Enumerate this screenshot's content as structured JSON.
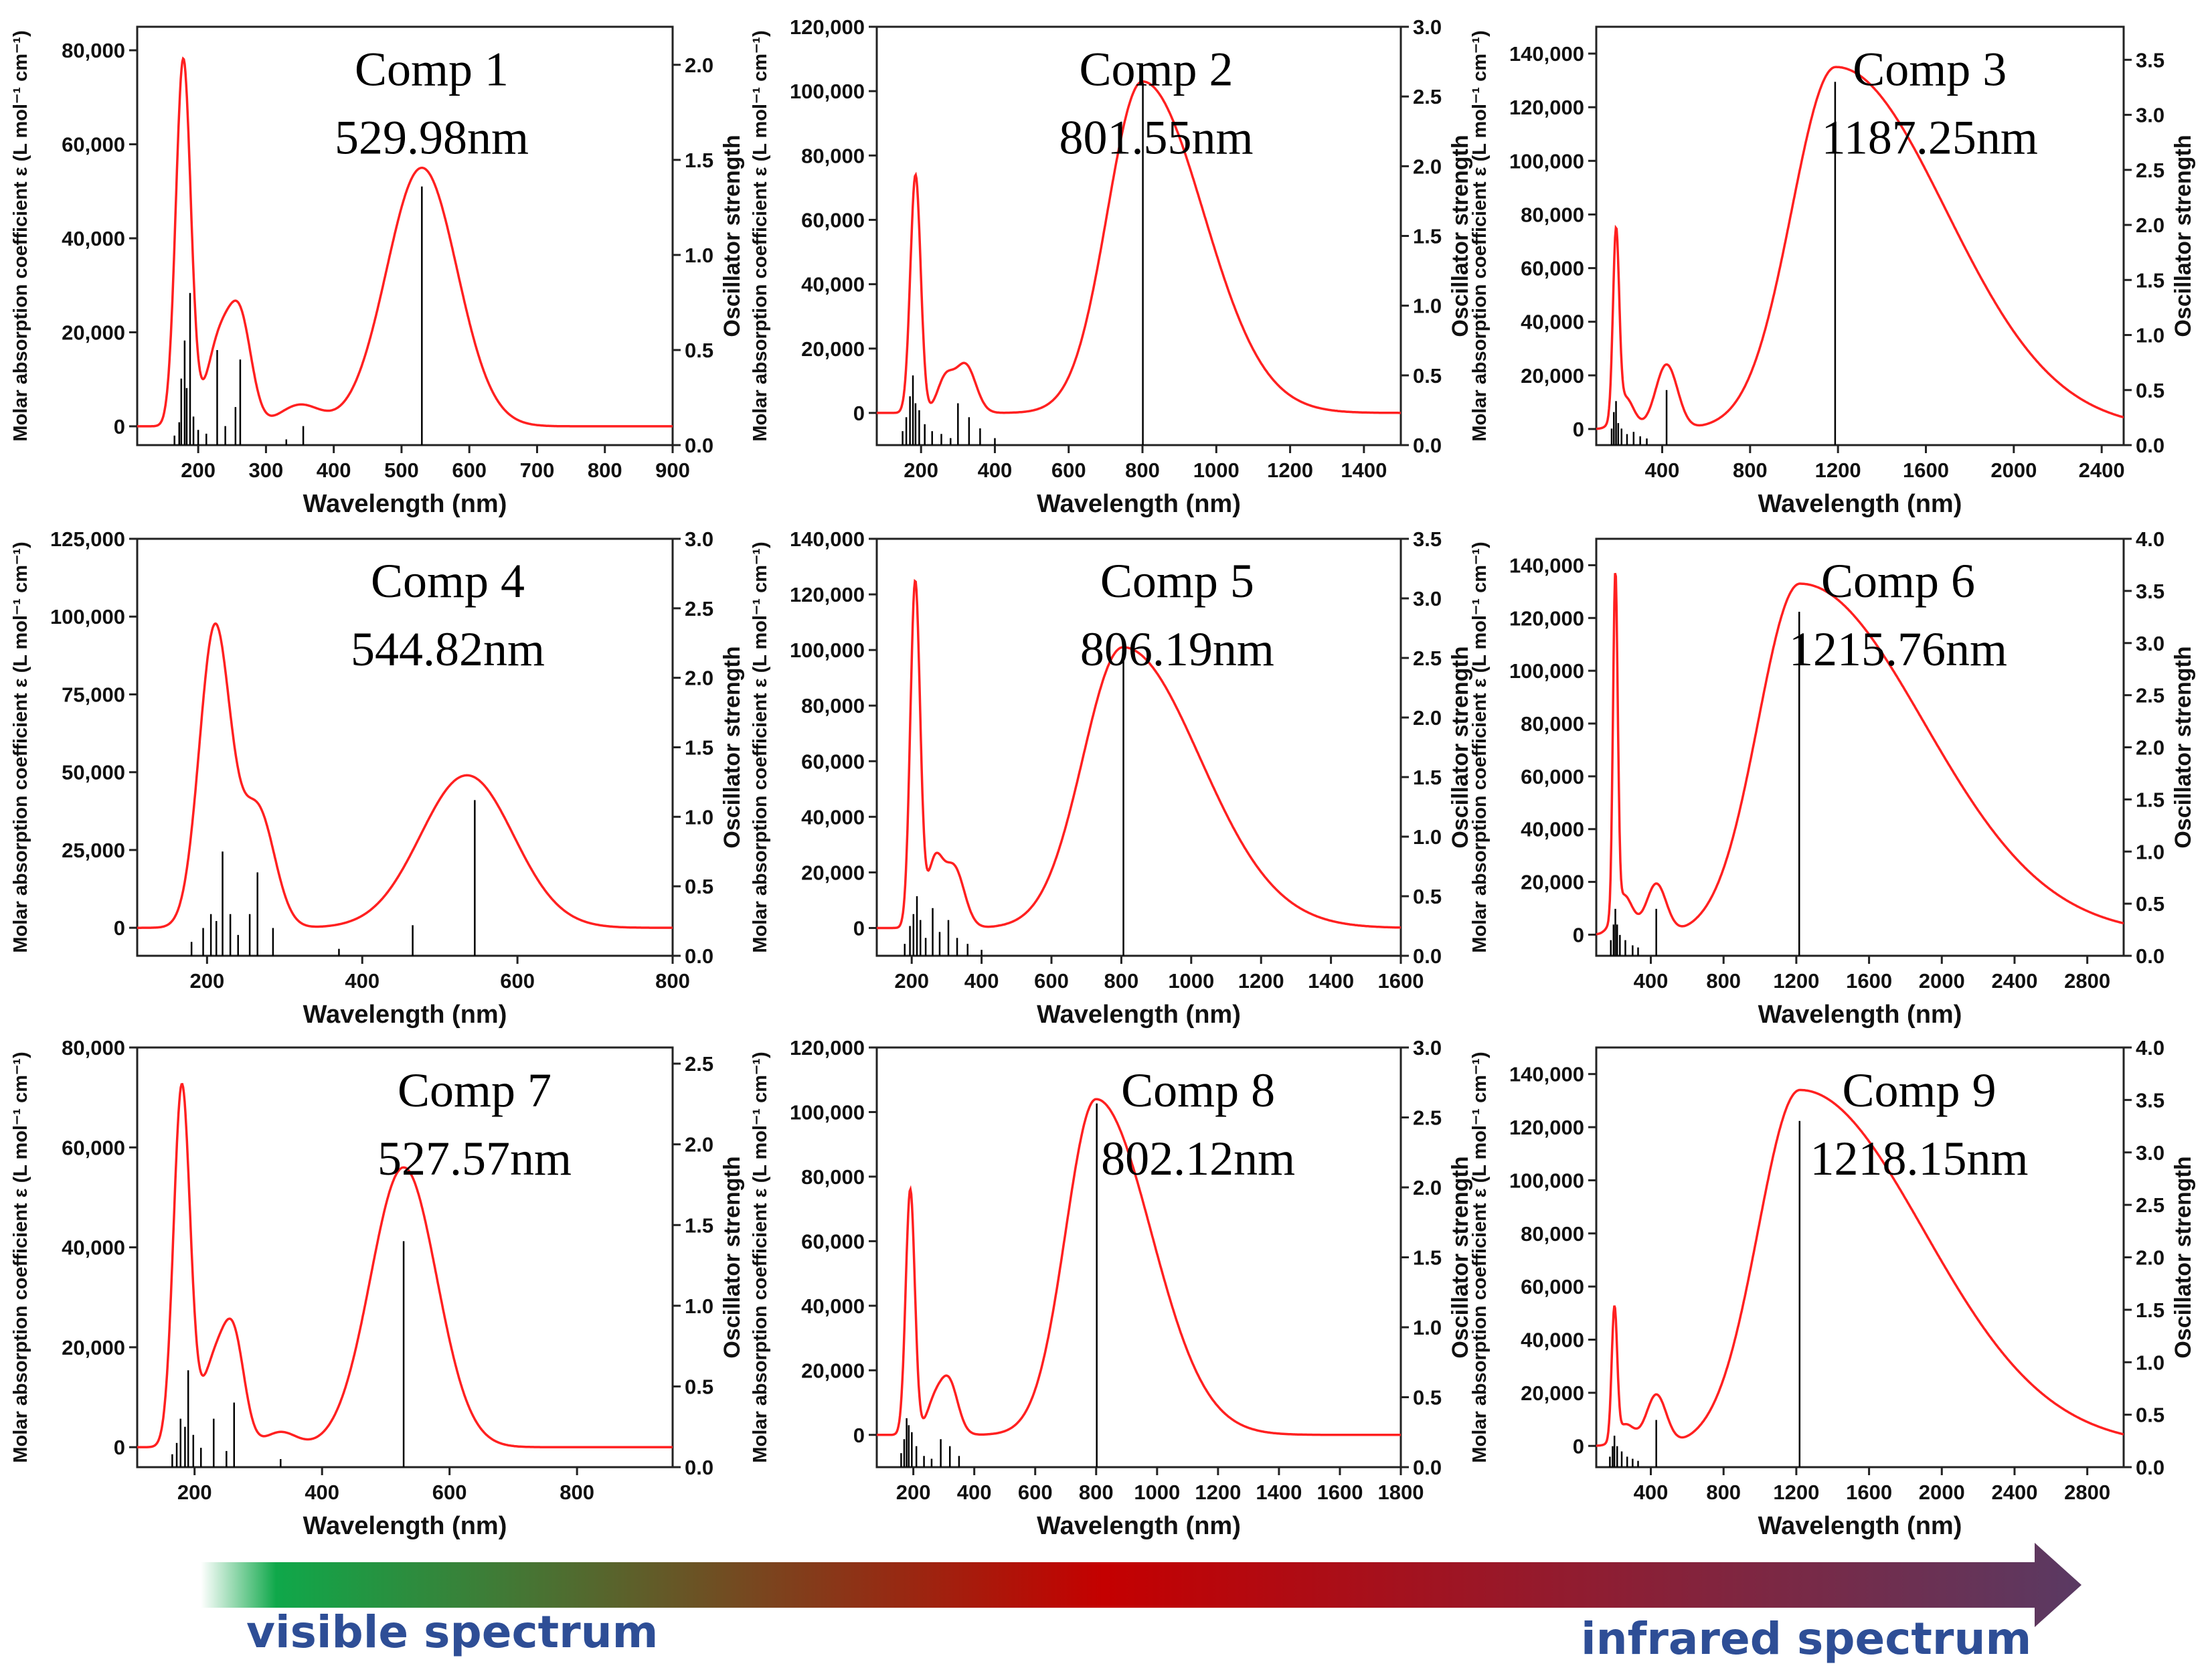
{
  "figure": {
    "xlabel": "Wavelength (nm)",
    "ylabel": "Molar absorption coefficient ε (L mol⁻¹ cm⁻¹)",
    "y2label": "Oscillator strength",
    "curve_color": "#ff2020",
    "stick_color": "#000000"
  },
  "banner": {
    "left_label": "visible spectrum",
    "right_label": "infrared spectrum",
    "gradient_colors": [
      "#ffffff",
      "#0fa84a",
      "#c40000",
      "#5a3a63"
    ]
  },
  "chart_data": [
    {
      "type": "line",
      "title": "Comp 1",
      "peak_label": "529.98nm",
      "xlim": [
        110,
        900
      ],
      "xticks": [
        200,
        300,
        400,
        500,
        600,
        700,
        800,
        900
      ],
      "ylim": [
        -4000,
        85000
      ],
      "yticks": [
        0,
        20000,
        40000,
        60000,
        80000
      ],
      "ytick_labels": [
        "0",
        "20,000",
        "40,000",
        "60,000",
        "80,000"
      ],
      "y2lim": [
        0.0,
        2.2
      ],
      "y2ticks": [
        0.0,
        0.5,
        1.0,
        1.5,
        2.0
      ],
      "y2tick_labels": [
        "0.0",
        "0.5",
        "1.0",
        "1.5",
        "2.0"
      ],
      "bands": [
        [
          178,
          78000,
          11
        ],
        [
          230,
          17000,
          18
        ],
        [
          262,
          22000,
          17
        ],
        [
          350,
          4500,
          30
        ],
        [
          530,
          55000,
          52
        ]
      ],
      "sticks": [
        [
          165,
          0.05
        ],
        [
          172,
          0.12
        ],
        [
          175,
          0.35
        ],
        [
          180,
          0.55
        ],
        [
          183,
          0.3
        ],
        [
          188,
          0.8
        ],
        [
          193,
          0.15
        ],
        [
          200,
          0.08
        ],
        [
          212,
          0.06
        ],
        [
          228,
          0.5
        ],
        [
          240,
          0.1
        ],
        [
          255,
          0.2
        ],
        [
          262,
          0.45
        ],
        [
          330,
          0.03
        ],
        [
          355,
          0.1
        ],
        [
          530,
          1.36
        ]
      ]
    },
    {
      "type": "line",
      "title": "Comp 2",
      "peak_label": "801.55nm",
      "xlim": [
        80,
        1500
      ],
      "xticks": [
        200,
        400,
        600,
        800,
        1000,
        1200,
        1400
      ],
      "ylim": [
        -10000,
        120000
      ],
      "yticks": [
        0,
        20000,
        40000,
        60000,
        80000,
        100000,
        120000
      ],
      "ytick_labels": [
        "0",
        "20,000",
        "40,000",
        "60,000",
        "80,000",
        "100,000",
        "120,000"
      ],
      "y2lim": [
        0.0,
        3.0
      ],
      "y2ticks": [
        0.0,
        0.5,
        1.0,
        1.5,
        2.0,
        2.5,
        3.0
      ],
      "y2tick_labels": [
        "0.0",
        "0.5",
        "1.0",
        "1.5",
        "2.0",
        "2.5",
        "3.0"
      ],
      "bands": [
        [
          185,
          74000,
          14
        ],
        [
          265,
          10000,
          22
        ],
        [
          320,
          15000,
          28
        ],
        [
          800,
          103000,
          [
            95,
            165
          ]
        ]
      ],
      "sticks": [
        [
          150,
          0.1
        ],
        [
          160,
          0.2
        ],
        [
          170,
          0.35
        ],
        [
          178,
          0.5
        ],
        [
          185,
          0.3
        ],
        [
          195,
          0.25
        ],
        [
          210,
          0.15
        ],
        [
          230,
          0.1
        ],
        [
          255,
          0.08
        ],
        [
          280,
          0.05
        ],
        [
          300,
          0.3
        ],
        [
          330,
          0.2
        ],
        [
          360,
          0.12
        ],
        [
          400,
          0.05
        ],
        [
          801,
          2.6
        ]
      ]
    },
    {
      "type": "line",
      "title": "Comp 3",
      "peak_label": "1187.25nm",
      "xlim": [
        100,
        2500
      ],
      "xticks": [
        400,
        800,
        1200,
        1600,
        2000,
        2400
      ],
      "ylim": [
        -6000,
        150000
      ],
      "yticks": [
        0,
        20000,
        40000,
        60000,
        80000,
        100000,
        120000,
        140000
      ],
      "ytick_labels": [
        "0",
        "20,000",
        "40,000",
        "60,000",
        "80,000",
        "100,000",
        "120,000",
        "140,000"
      ],
      "y2lim": [
        0.0,
        3.8
      ],
      "y2ticks": [
        0.0,
        0.5,
        1.0,
        1.5,
        2.0,
        2.5,
        3.0,
        3.5
      ],
      "y2tick_labels": [
        "0.0",
        "0.5",
        "1.0",
        "1.5",
        "2.0",
        "2.5",
        "3.0",
        "3.5"
      ],
      "bands": [
        [
          190,
          68000,
          14
        ],
        [
          230,
          12000,
          40
        ],
        [
          420,
          24000,
          50
        ],
        [
          1190,
          135000,
          [
            200,
            500
          ]
        ]
      ],
      "sticks": [
        [
          170,
          0.15
        ],
        [
          180,
          0.3
        ],
        [
          190,
          0.4
        ],
        [
          200,
          0.2
        ],
        [
          215,
          0.15
        ],
        [
          240,
          0.1
        ],
        [
          270,
          0.12
        ],
        [
          300,
          0.08
        ],
        [
          330,
          0.06
        ],
        [
          420,
          0.5
        ],
        [
          1187,
          3.3
        ]
      ]
    },
    {
      "type": "line",
      "title": "Comp 4",
      "peak_label": "544.82nm",
      "xlim": [
        110,
        800
      ],
      "xticks": [
        200,
        400,
        600,
        800
      ],
      "ylim": [
        -9000,
        125000
      ],
      "yticks": [
        0,
        25000,
        50000,
        75000,
        100000,
        125000
      ],
      "ytick_labels": [
        "0",
        "25,000",
        "50,000",
        "75,000",
        "100,000",
        "125,000"
      ],
      "y2lim": [
        0.0,
        3.0
      ],
      "y2ticks": [
        0.0,
        0.5,
        1.0,
        1.5,
        2.0,
        2.5,
        3.0
      ],
      "y2tick_labels": [
        "0.0",
        "0.5",
        "1.0",
        "1.5",
        "2.0",
        "2.5",
        "3.0"
      ],
      "bands": [
        [
          210,
          96000,
          20
        ],
        [
          265,
          38000,
          22
        ],
        [
          535,
          49000,
          60
        ]
      ],
      "sticks": [
        [
          180,
          0.1
        ],
        [
          195,
          0.2
        ],
        [
          205,
          0.3
        ],
        [
          212,
          0.25
        ],
        [
          220,
          0.75
        ],
        [
          230,
          0.3
        ],
        [
          240,
          0.15
        ],
        [
          255,
          0.3
        ],
        [
          265,
          0.6
        ],
        [
          285,
          0.2
        ],
        [
          370,
          0.05
        ],
        [
          465,
          0.22
        ],
        [
          545,
          1.12
        ]
      ]
    },
    {
      "type": "line",
      "title": "Comp 5",
      "peak_label": "806.19nm",
      "xlim": [
        100,
        1600
      ],
      "xticks": [
        200,
        400,
        600,
        800,
        1000,
        1200,
        1400,
        1600
      ],
      "ylim": [
        -10000,
        140000
      ],
      "yticks": [
        0,
        20000,
        40000,
        60000,
        80000,
        100000,
        120000,
        140000
      ],
      "ytick_labels": [
        "0",
        "20,000",
        "40,000",
        "60,000",
        "80,000",
        "100,000",
        "120,000",
        "140,000"
      ],
      "y2lim": [
        0.0,
        3.5
      ],
      "y2ticks": [
        0.0,
        0.5,
        1.0,
        1.5,
        2.0,
        2.5,
        3.0,
        3.5
      ],
      "y2tick_labels": [
        "0.0",
        "0.5",
        "1.0",
        "1.5",
        "2.0",
        "2.5",
        "3.0",
        "3.5"
      ],
      "bands": [
        [
          210,
          124000,
          14
        ],
        [
          265,
          22000,
          22
        ],
        [
          320,
          22000,
          30
        ],
        [
          805,
          101000,
          [
            115,
            220
          ]
        ]
      ],
      "sticks": [
        [
          180,
          0.1
        ],
        [
          195,
          0.25
        ],
        [
          205,
          0.35
        ],
        [
          215,
          0.5
        ],
        [
          225,
          0.3
        ],
        [
          240,
          0.15
        ],
        [
          260,
          0.4
        ],
        [
          280,
          0.2
        ],
        [
          305,
          0.3
        ],
        [
          330,
          0.15
        ],
        [
          360,
          0.1
        ],
        [
          400,
          0.05
        ],
        [
          806,
          2.5
        ]
      ]
    },
    {
      "type": "line",
      "title": "Comp 6",
      "peak_label": "1215.76nm",
      "xlim": [
        100,
        3000
      ],
      "xticks": [
        400,
        800,
        1200,
        1600,
        2000,
        2400,
        2800
      ],
      "ylim": [
        -8000,
        150000
      ],
      "yticks": [
        0,
        20000,
        40000,
        60000,
        80000,
        100000,
        120000,
        140000
      ],
      "ytick_labels": [
        "0",
        "20,000",
        "40,000",
        "60,000",
        "80,000",
        "100,000",
        "120,000",
        "140,000"
      ],
      "y2lim": [
        0.0,
        4.0
      ],
      "y2ticks": [
        0.0,
        0.5,
        1.0,
        1.5,
        2.0,
        2.5,
        3.0,
        3.5,
        4.0
      ],
      "y2tick_labels": [
        "0.0",
        "0.5",
        "1.0",
        "1.5",
        "2.0",
        "2.5",
        "3.0",
        "3.5",
        "4.0"
      ],
      "bands": [
        [
          205,
          128000,
          13
        ],
        [
          250,
          15000,
          50
        ],
        [
          430,
          19000,
          55
        ],
        [
          1220,
          133000,
          [
            230,
            680
          ]
        ]
      ],
      "sticks": [
        [
          180,
          0.15
        ],
        [
          195,
          0.3
        ],
        [
          205,
          0.45
        ],
        [
          215,
          0.3
        ],
        [
          230,
          0.2
        ],
        [
          260,
          0.15
        ],
        [
          300,
          0.1
        ],
        [
          330,
          0.08
        ],
        [
          430,
          0.45
        ],
        [
          1216,
          3.3
        ]
      ]
    },
    {
      "type": "line",
      "title": "Comp 7",
      "peak_label": "527.57nm",
      "xlim": [
        110,
        950
      ],
      "xticks": [
        200,
        400,
        600,
        800
      ],
      "ylim": [
        -4000,
        80000
      ],
      "yticks": [
        0,
        20000,
        40000,
        60000,
        80000
      ],
      "ytick_labels": [
        "0",
        "20,000",
        "40,000",
        "60,000",
        "80,000"
      ],
      "y2lim": [
        0.0,
        2.6
      ],
      "y2ticks": [
        0.0,
        0.5,
        1.0,
        1.5,
        2.0,
        2.5
      ],
      "y2tick_labels": [
        "0.0",
        "0.5",
        "1.0",
        "1.5",
        "2.0",
        "2.5"
      ],
      "bands": [
        [
          180,
          72000,
          13
        ],
        [
          230,
          16000,
          20
        ],
        [
          262,
          20000,
          17
        ],
        [
          335,
          3000,
          25
        ],
        [
          528,
          56000,
          52
        ]
      ],
      "sticks": [
        [
          165,
          0.08
        ],
        [
          172,
          0.15
        ],
        [
          178,
          0.3
        ],
        [
          185,
          0.25
        ],
        [
          190,
          0.6
        ],
        [
          198,
          0.2
        ],
        [
          210,
          0.12
        ],
        [
          230,
          0.3
        ],
        [
          250,
          0.1
        ],
        [
          262,
          0.4
        ],
        [
          335,
          0.05
        ],
        [
          528,
          1.4
        ]
      ]
    },
    {
      "type": "line",
      "title": "Comp 8",
      "peak_label": "802.12nm",
      "xlim": [
        80,
        1800
      ],
      "xticks": [
        200,
        400,
        600,
        800,
        1000,
        1200,
        1400,
        1600,
        1800
      ],
      "ylim": [
        -10000,
        120000
      ],
      "yticks": [
        0,
        20000,
        40000,
        60000,
        80000,
        100000,
        120000
      ],
      "ytick_labels": [
        "0",
        "20,000",
        "40,000",
        "60,000",
        "80,000",
        "100,000",
        "120,000"
      ],
      "y2lim": [
        0.0,
        3.0
      ],
      "y2ticks": [
        0.0,
        0.5,
        1.0,
        1.5,
        2.0,
        2.5,
        3.0
      ],
      "y2tick_labels": [
        "0.0",
        "0.5",
        "1.0",
        "1.5",
        "2.0",
        "2.5",
        "3.0"
      ],
      "bands": [
        [
          190,
          76000,
          15
        ],
        [
          265,
          8000,
          25
        ],
        [
          315,
          17000,
          30
        ],
        [
          800,
          104000,
          [
            100,
            180
          ]
        ]
      ],
      "sticks": [
        [
          160,
          0.1
        ],
        [
          170,
          0.2
        ],
        [
          178,
          0.35
        ],
        [
          185,
          0.3
        ],
        [
          195,
          0.25
        ],
        [
          210,
          0.15
        ],
        [
          235,
          0.08
        ],
        [
          260,
          0.06
        ],
        [
          290,
          0.2
        ],
        [
          320,
          0.15
        ],
        [
          350,
          0.08
        ],
        [
          802,
          2.6
        ]
      ]
    },
    {
      "type": "line",
      "title": "Comp 9",
      "peak_label": "1218.15nm",
      "xlim": [
        100,
        3000
      ],
      "xticks": [
        400,
        800,
        1200,
        1600,
        2000,
        2400,
        2800
      ],
      "ylim": [
        -8000,
        150000
      ],
      "yticks": [
        0,
        20000,
        40000,
        60000,
        80000,
        100000,
        120000,
        140000
      ],
      "ytick_labels": [
        "0",
        "20,000",
        "40,000",
        "60,000",
        "80,000",
        "100,000",
        "120,000",
        "140,000"
      ],
      "y2lim": [
        0.0,
        4.0
      ],
      "y2ticks": [
        0.0,
        0.5,
        1.0,
        1.5,
        2.0,
        2.5,
        3.0,
        3.5,
        4.0
      ],
      "y2tick_labels": [
        "0.0",
        "0.5",
        "1.0",
        "1.5",
        "2.0",
        "2.5",
        "3.0",
        "3.5",
        "4.0"
      ],
      "bands": [
        [
          200,
          49000,
          15
        ],
        [
          260,
          8000,
          50
        ],
        [
          430,
          19000,
          55
        ],
        [
          1220,
          134000,
          [
            230,
            680
          ]
        ]
      ],
      "sticks": [
        [
          175,
          0.1
        ],
        [
          190,
          0.2
        ],
        [
          200,
          0.3
        ],
        [
          215,
          0.2
        ],
        [
          240,
          0.15
        ],
        [
          270,
          0.1
        ],
        [
          300,
          0.08
        ],
        [
          330,
          0.06
        ],
        [
          430,
          0.45
        ],
        [
          1218,
          3.3
        ]
      ]
    }
  ]
}
